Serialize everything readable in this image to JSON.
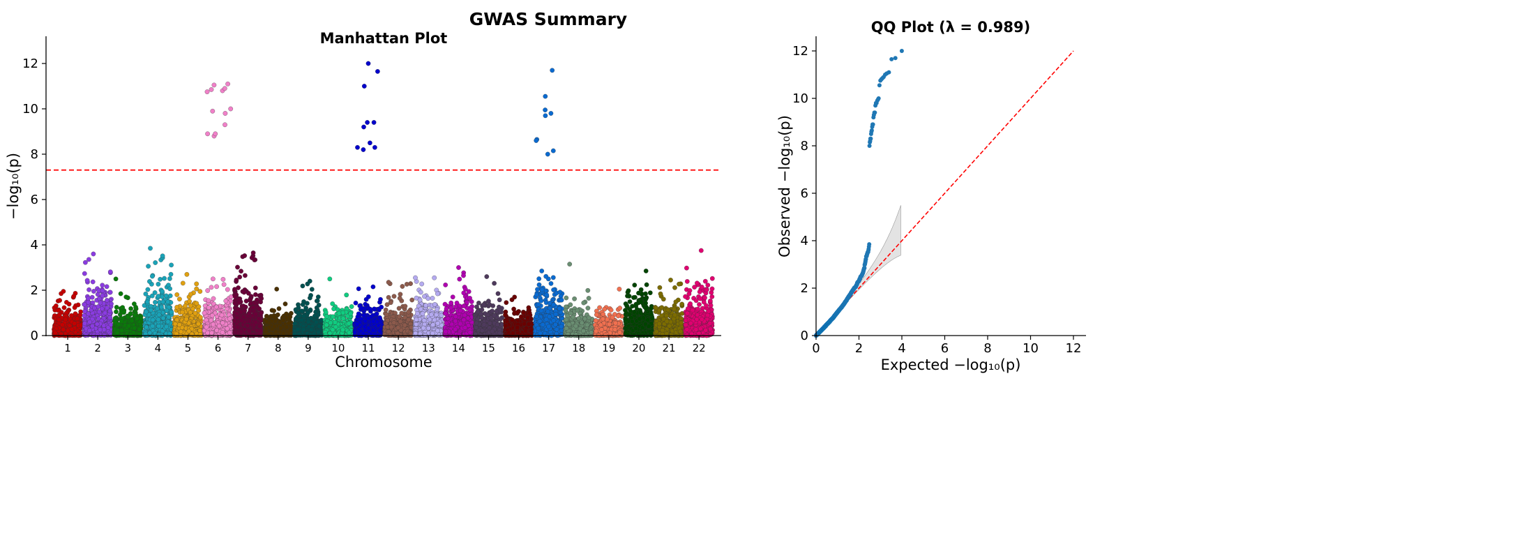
{
  "figure_title": "GWAS Summary",
  "chart_data": [
    {
      "type": "scatter",
      "title": "Manhattan Plot",
      "xlabel": "Chromosome",
      "ylabel": "−log₁₀(p)",
      "categories": [
        "1",
        "2",
        "3",
        "4",
        "5",
        "6",
        "7",
        "8",
        "9",
        "10",
        "11",
        "12",
        "13",
        "14",
        "15",
        "16",
        "17",
        "18",
        "19",
        "20",
        "21",
        "22"
      ],
      "ylim": [
        0,
        13.2
      ],
      "yticks": [
        "0",
        "2",
        "4",
        "6",
        "8",
        "10",
        "12"
      ],
      "significance_threshold": 7.3,
      "threshold_style": "red dashed",
      "grid": false,
      "chromosome_colors": [
        "#c40000",
        "#8a3ce0",
        "#0a7a0a",
        "#1aa3b8",
        "#e0a010",
        "#f080c8",
        "#6a0038",
        "#4a3000",
        "#005050",
        "#10cc80",
        "#0000cc",
        "#8c5a4c",
        "#b4aaf0",
        "#b000b0",
        "#4e3a5c",
        "#6a0000",
        "#0a6ad0",
        "#6a8e72",
        "#f07050",
        "#004400",
        "#7c6c00",
        "#e00070"
      ],
      "significant_hits": {
        "6": [
          11.1,
          10.85,
          10.8,
          10.75,
          11.05,
          10.9,
          10.0,
          9.9,
          9.8,
          9.3,
          8.8,
          8.9,
          8.9
        ],
        "11": [
          12.0,
          11.65,
          11.0,
          9.4,
          9.4,
          9.2,
          8.5,
          8.3,
          8.3,
          8.2
        ],
        "17": [
          11.7,
          10.55,
          9.95,
          9.8,
          9.7,
          8.65,
          8.6,
          8.15,
          8.0
        ]
      },
      "max_background_per_chromosome": [
        1.95,
        3.6,
        2.5,
        3.85,
        2.7,
        2.5,
        3.65,
        2.05,
        2.4,
        2.5,
        2.15,
        2.35,
        2.55,
        3.0,
        2.6,
        1.7,
        2.85,
        3.15,
        2.05,
        2.85,
        2.45,
        3.75
      ],
      "points_per_chromosome": 450
    },
    {
      "type": "scatter",
      "title": "QQ Plot (λ = 0.989)",
      "lambda": 0.989,
      "xlabel": "Expected −log₁₀(p)",
      "ylabel": "Observed −log₁₀(p)",
      "xlim": [
        0,
        12.6
      ],
      "ylim": [
        0,
        12.6
      ],
      "xticks": [
        "0",
        "2",
        "4",
        "6",
        "8",
        "10",
        "12"
      ],
      "yticks": [
        "0",
        "2",
        "4",
        "6",
        "8",
        "10",
        "12"
      ],
      "point_color": "#1f77b4",
      "reference_line": "y = x, red dashed",
      "confidence_band": "95% grey band, expected 0–4",
      "grid": false
    }
  ]
}
